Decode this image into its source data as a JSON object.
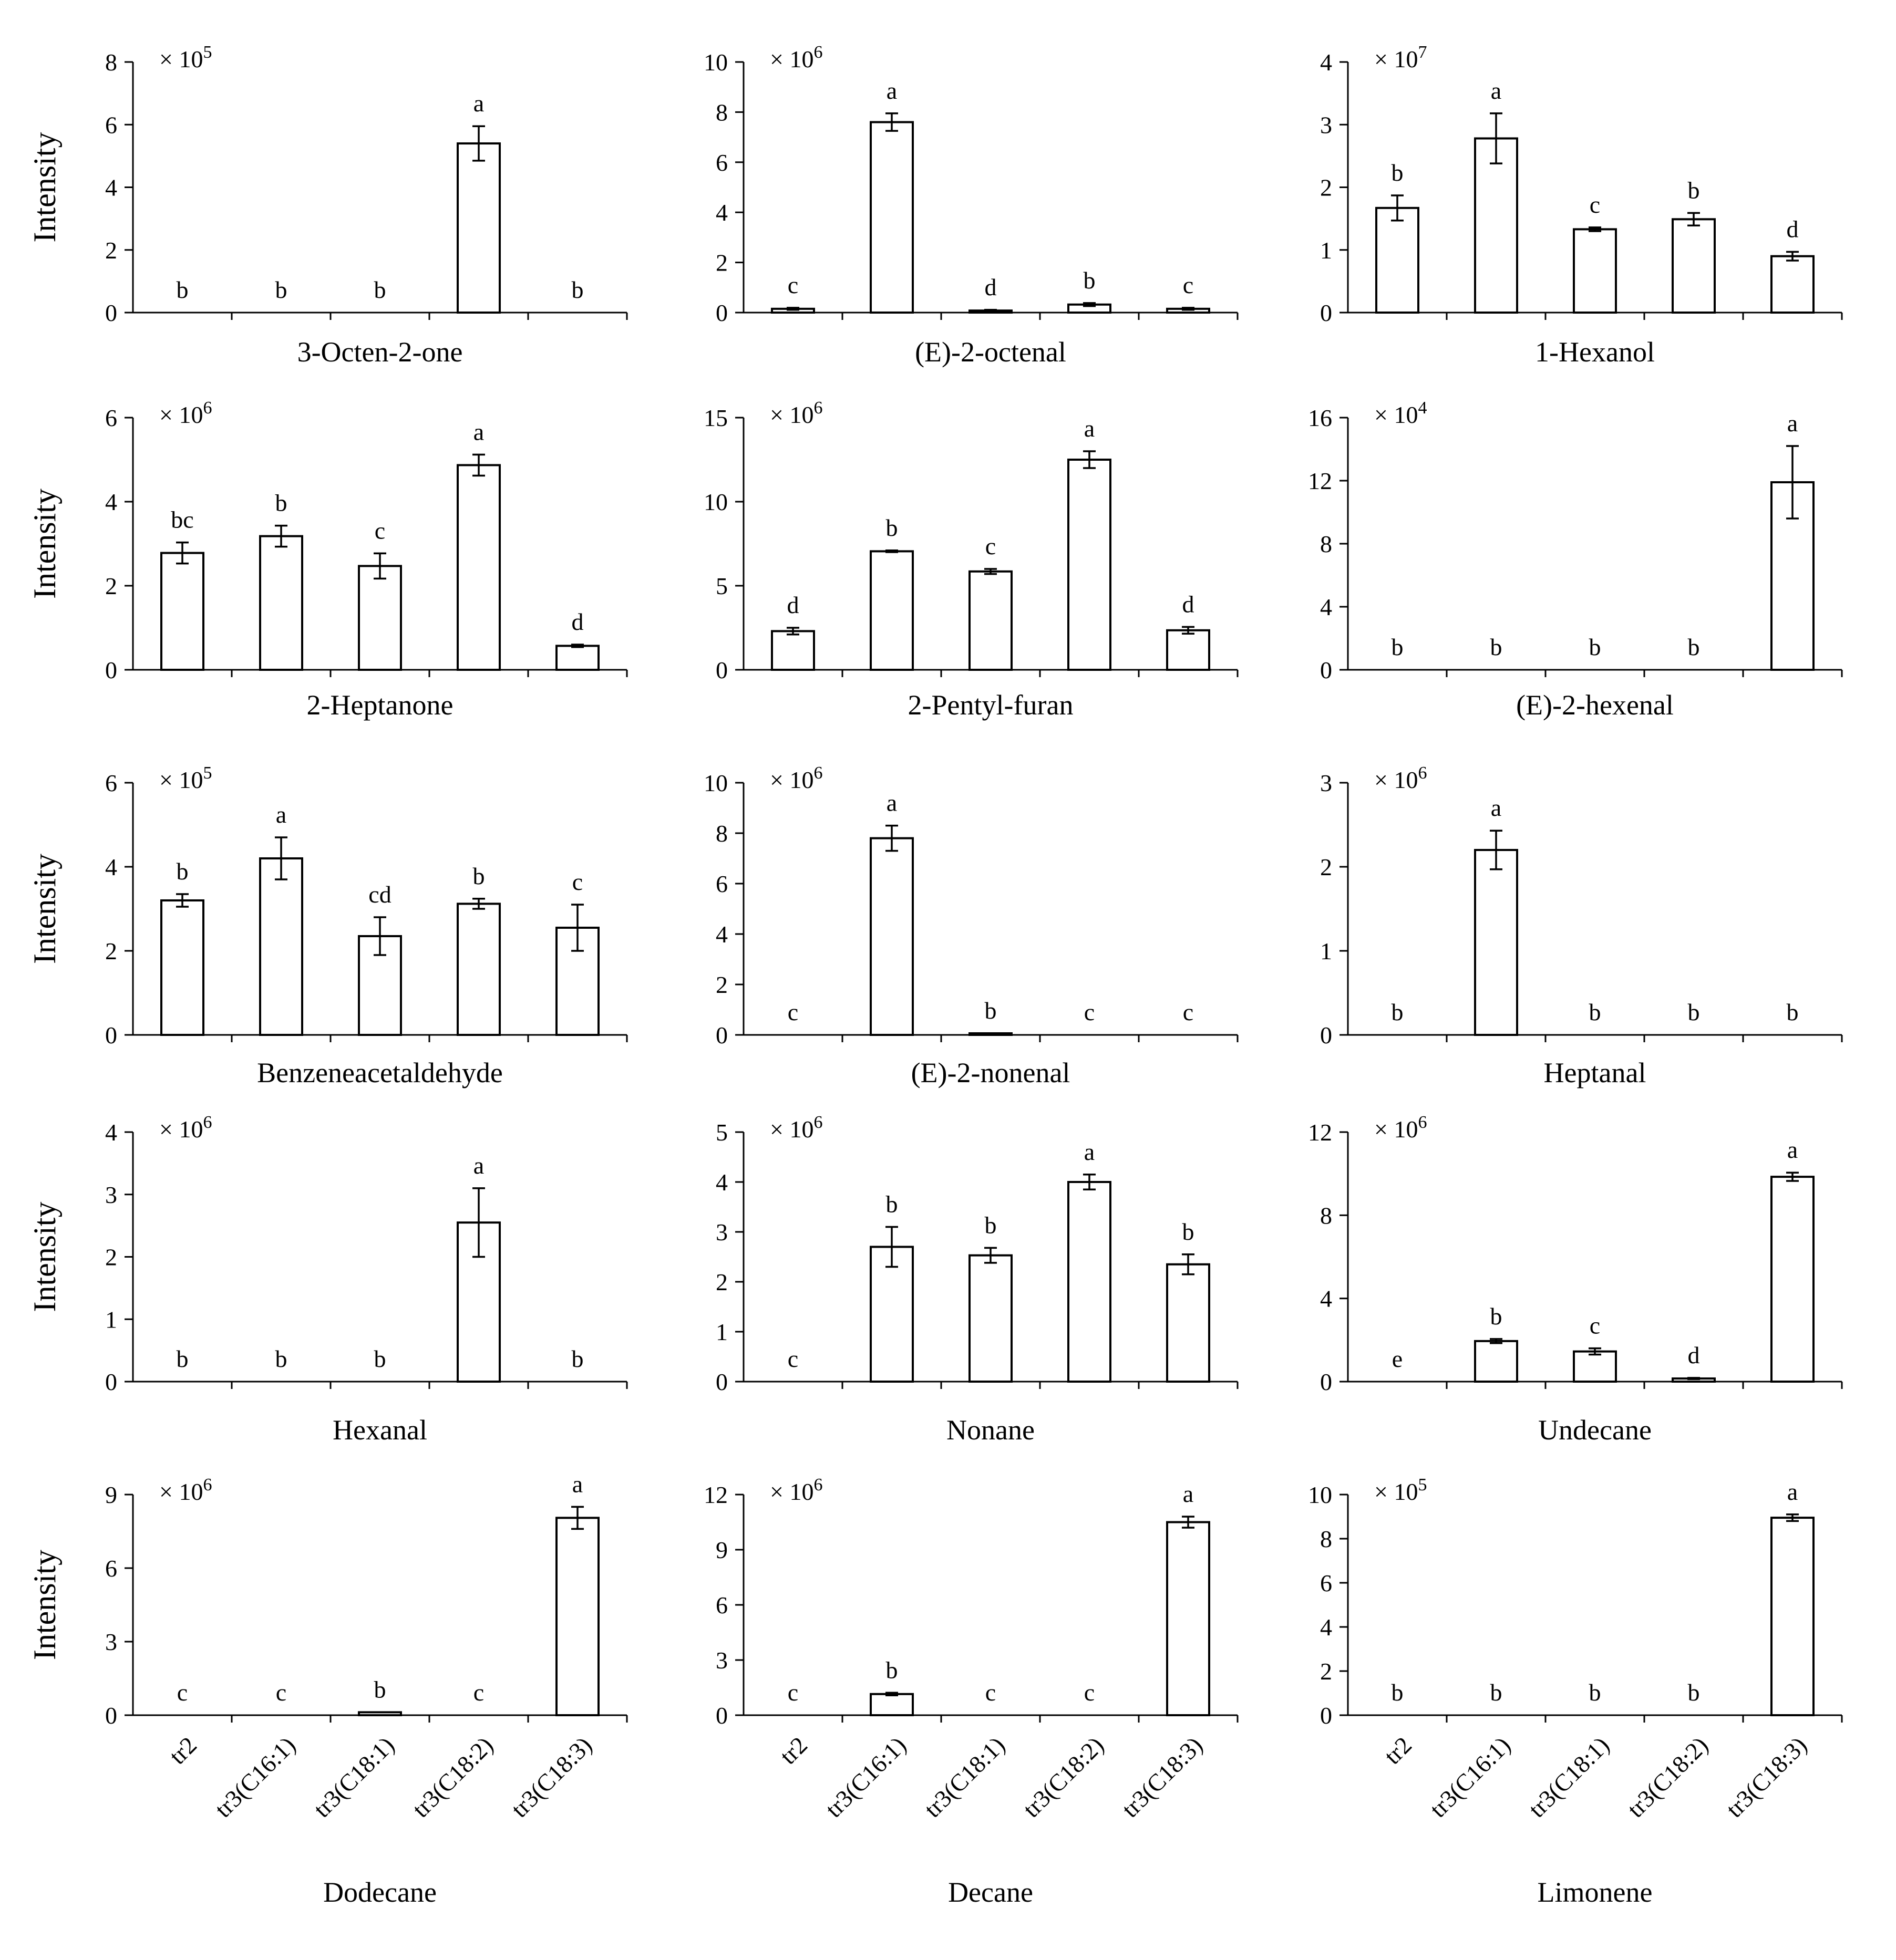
{
  "figure": {
    "y_axis_label": "Intensity",
    "scale_prefix": "× 10"
  },
  "chart_data": [
    {
      "type": "bar",
      "title": "3-Octen-2-one",
      "ylabel": "Intensity",
      "scale_exponent": "5",
      "ylim": [
        0,
        8
      ],
      "yticks": [
        0,
        2,
        4,
        6,
        8
      ],
      "categories": [
        "tr2",
        "tr3(C16:1)",
        "tr3(C18:1)",
        "tr3(C18:2)",
        "tr3(C18:3)"
      ],
      "values": [
        0,
        0,
        0,
        5.4,
        0
      ],
      "errors": [
        0,
        0,
        0,
        0.55,
        0
      ],
      "letters": [
        "b",
        "b",
        "b",
        "a",
        "b"
      ]
    },
    {
      "type": "bar",
      "title": "(E)-2-octenal",
      "ylabel": "",
      "scale_exponent": "6",
      "ylim": [
        0,
        10
      ],
      "yticks": [
        0,
        2,
        4,
        6,
        8,
        10
      ],
      "categories": [
        "tr2",
        "tr3(C16:1)",
        "tr3(C18:1)",
        "tr3(C18:2)",
        "tr3(C18:3)"
      ],
      "values": [
        0.15,
        7.6,
        0.08,
        0.32,
        0.15
      ],
      "errors": [
        0.04,
        0.35,
        0.03,
        0.06,
        0.04
      ],
      "letters": [
        "c",
        "a",
        "d",
        "b",
        "c"
      ]
    },
    {
      "type": "bar",
      "title": "1-Hexanol",
      "ylabel": "",
      "scale_exponent": "7",
      "ylim": [
        0,
        4
      ],
      "yticks": [
        0,
        1,
        2,
        3,
        4
      ],
      "categories": [
        "tr2",
        "tr3(C16:1)",
        "tr3(C18:1)",
        "tr3(C18:2)",
        "tr3(C18:3)"
      ],
      "values": [
        1.67,
        2.78,
        1.33,
        1.49,
        0.9
      ],
      "errors": [
        0.2,
        0.4,
        0.03,
        0.1,
        0.07
      ],
      "letters": [
        "b",
        "a",
        "c",
        "b",
        "d"
      ]
    },
    {
      "type": "bar",
      "title": "2-Heptanone",
      "ylabel": "Intensity",
      "scale_exponent": "6",
      "ylim": [
        0,
        6
      ],
      "yticks": [
        0,
        2,
        4,
        6
      ],
      "categories": [
        "tr2",
        "tr3(C16:1)",
        "tr3(C18:1)",
        "tr3(C18:2)",
        "tr3(C18:3)"
      ],
      "values": [
        2.78,
        3.18,
        2.47,
        4.87,
        0.57
      ],
      "errors": [
        0.25,
        0.25,
        0.3,
        0.25,
        0.03
      ],
      "letters": [
        "bc",
        "b",
        "c",
        "a",
        "d"
      ]
    },
    {
      "type": "bar",
      "title": "2-Pentyl-furan",
      "ylabel": "",
      "scale_exponent": "6",
      "ylim": [
        0,
        15
      ],
      "yticks": [
        0,
        5,
        10,
        15
      ],
      "categories": [
        "tr2",
        "tr3(C16:1)",
        "tr3(C18:1)",
        "tr3(C18:2)",
        "tr3(C18:3)"
      ],
      "values": [
        2.3,
        7.05,
        5.85,
        12.5,
        2.35
      ],
      "errors": [
        0.2,
        0.05,
        0.15,
        0.5,
        0.2
      ],
      "letters": [
        "d",
        "b",
        "c",
        "a",
        "d"
      ]
    },
    {
      "type": "bar",
      "title": "(E)-2-hexenal",
      "ylabel": "",
      "scale_exponent": "4",
      "ylim": [
        0,
        16
      ],
      "yticks": [
        0,
        4,
        8,
        12,
        16
      ],
      "categories": [
        "tr2",
        "tr3(C16:1)",
        "tr3(C18:1)",
        "tr3(C18:2)",
        "tr3(C18:3)"
      ],
      "values": [
        0,
        0,
        0,
        0,
        11.9
      ],
      "errors": [
        0,
        0,
        0,
        0,
        2.3
      ],
      "letters": [
        "b",
        "b",
        "b",
        "b",
        "a"
      ]
    },
    {
      "type": "bar",
      "title": "Benzeneacetaldehyde",
      "ylabel": "Intensity",
      "scale_exponent": "5",
      "ylim": [
        0,
        6
      ],
      "yticks": [
        0,
        2,
        4,
        6
      ],
      "categories": [
        "tr2",
        "tr3(C16:1)",
        "tr3(C18:1)",
        "tr3(C18:2)",
        "tr3(C18:3)"
      ],
      "values": [
        3.2,
        4.2,
        2.35,
        3.12,
        2.55
      ],
      "errors": [
        0.15,
        0.5,
        0.45,
        0.12,
        0.55
      ],
      "letters": [
        "b",
        "a",
        "cd",
        "b",
        "c"
      ]
    },
    {
      "type": "bar",
      "title": "(E)-2-nonenal",
      "ylabel": "",
      "scale_exponent": "6",
      "ylim": [
        0,
        10
      ],
      "yticks": [
        0,
        2,
        4,
        6,
        8,
        10
      ],
      "categories": [
        "tr2",
        "tr3(C16:1)",
        "tr3(C18:1)",
        "tr3(C18:2)",
        "tr3(C18:3)"
      ],
      "values": [
        0,
        7.8,
        0.06,
        0,
        0
      ],
      "errors": [
        0,
        0.5,
        0,
        0,
        0
      ],
      "letters": [
        "c",
        "a",
        "b",
        "c",
        "c"
      ]
    },
    {
      "type": "bar",
      "title": "Heptanal",
      "ylabel": "",
      "scale_exponent": "6",
      "ylim": [
        0,
        3
      ],
      "yticks": [
        0,
        1,
        2,
        3
      ],
      "categories": [
        "tr2",
        "tr3(C16:1)",
        "tr3(C18:1)",
        "tr3(C18:2)",
        "tr3(C18:3)"
      ],
      "values": [
        0,
        2.2,
        0,
        0,
        0
      ],
      "errors": [
        0,
        0.23,
        0,
        0,
        0
      ],
      "letters": [
        "b",
        "a",
        "b",
        "b",
        "b"
      ]
    },
    {
      "type": "bar",
      "title": "Hexanal",
      "ylabel": "Intensity",
      "scale_exponent": "6",
      "ylim": [
        0,
        4
      ],
      "yticks": [
        0,
        1,
        2,
        3,
        4
      ],
      "categories": [
        "tr2",
        "tr3(C16:1)",
        "tr3(C18:1)",
        "tr3(C18:2)",
        "tr3(C18:3)"
      ],
      "values": [
        0,
        0,
        0,
        2.55,
        0
      ],
      "errors": [
        0,
        0,
        0,
        0.55,
        0
      ],
      "letters": [
        "b",
        "b",
        "b",
        "a",
        "b"
      ]
    },
    {
      "type": "bar",
      "title": "Nonane",
      "ylabel": "",
      "scale_exponent": "6",
      "ylim": [
        0,
        5
      ],
      "yticks": [
        0,
        1,
        2,
        3,
        4,
        5
      ],
      "categories": [
        "tr2",
        "tr3(C16:1)",
        "tr3(C18:1)",
        "tr3(C18:2)",
        "tr3(C18:3)"
      ],
      "values": [
        0,
        2.7,
        2.53,
        4.0,
        2.35
      ],
      "errors": [
        0,
        0.4,
        0.15,
        0.15,
        0.2
      ],
      "letters": [
        "c",
        "b",
        "b",
        "a",
        "b"
      ]
    },
    {
      "type": "bar",
      "title": "Undecane",
      "ylabel": "",
      "scale_exponent": "6",
      "ylim": [
        0,
        12
      ],
      "yticks": [
        0,
        4,
        8,
        12
      ],
      "categories": [
        "tr2",
        "tr3(C16:1)",
        "tr3(C18:1)",
        "tr3(C18:2)",
        "tr3(C18:3)"
      ],
      "values": [
        0,
        1.95,
        1.45,
        0.15,
        9.85
      ],
      "errors": [
        0,
        0.1,
        0.15,
        0.03,
        0.2
      ],
      "letters": [
        "e",
        "b",
        "c",
        "d",
        "a"
      ]
    },
    {
      "type": "bar",
      "title": "Dodecane",
      "ylabel": "Intensity",
      "scale_exponent": "6",
      "ylim": [
        0,
        9
      ],
      "yticks": [
        0,
        3,
        6,
        9
      ],
      "categories": [
        "tr2",
        "tr3(C16:1)",
        "tr3(C18:1)",
        "tr3(C18:2)",
        "tr3(C18:3)"
      ],
      "values": [
        0,
        0,
        0.12,
        0,
        8.05
      ],
      "errors": [
        0,
        0,
        0,
        0,
        0.45
      ],
      "letters": [
        "c",
        "c",
        "b",
        "c",
        "a"
      ]
    },
    {
      "type": "bar",
      "title": "Decane",
      "ylabel": "",
      "scale_exponent": "6",
      "ylim": [
        0,
        12
      ],
      "yticks": [
        0,
        3,
        6,
        9,
        12
      ],
      "categories": [
        "tr2",
        "tr3(C16:1)",
        "tr3(C18:1)",
        "tr3(C18:2)",
        "tr3(C18:3)"
      ],
      "values": [
        0,
        1.15,
        0,
        0,
        10.5
      ],
      "errors": [
        0,
        0.07,
        0,
        0,
        0.3
      ],
      "letters": [
        "c",
        "b",
        "c",
        "c",
        "a"
      ]
    },
    {
      "type": "bar",
      "title": "Limonene",
      "ylabel": "",
      "scale_exponent": "5",
      "ylim": [
        0,
        10
      ],
      "yticks": [
        0,
        2,
        4,
        6,
        8,
        10
      ],
      "categories": [
        "tr2",
        "tr3(C16:1)",
        "tr3(C18:1)",
        "tr3(C18:2)",
        "tr3(C18:3)"
      ],
      "values": [
        0,
        0,
        0,
        0,
        8.95
      ],
      "errors": [
        0,
        0,
        0,
        0,
        0.15
      ],
      "letters": [
        "b",
        "b",
        "b",
        "b",
        "a"
      ]
    }
  ]
}
